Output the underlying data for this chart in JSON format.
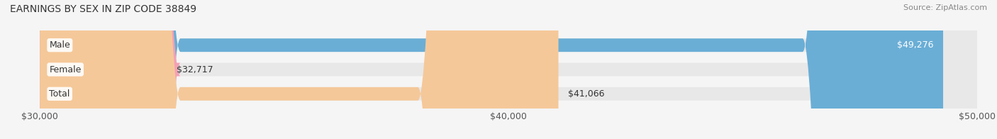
{
  "title": "EARNINGS BY SEX IN ZIP CODE 38849",
  "source": "Source: ZipAtlas.com",
  "categories": [
    "Male",
    "Female",
    "Total"
  ],
  "values": [
    49276,
    32717,
    41066
  ],
  "x_min": 30000,
  "x_max": 50000,
  "x_ticks": [
    30000,
    40000,
    50000
  ],
  "x_tick_labels": [
    "$30,000",
    "$40,000",
    "$50,000"
  ],
  "bar_colors": [
    "#6aaed6",
    "#f4a0b5",
    "#f5c899"
  ],
  "bar_height": 0.55,
  "label_fontsize": 9,
  "title_fontsize": 10,
  "source_fontsize": 8,
  "tick_fontsize": 9,
  "category_fontsize": 9,
  "background_color": "#f5f5f5",
  "bar_background_color": "#e8e8e8",
  "value_labels": [
    "$49,276",
    "$32,717",
    "$41,066"
  ]
}
